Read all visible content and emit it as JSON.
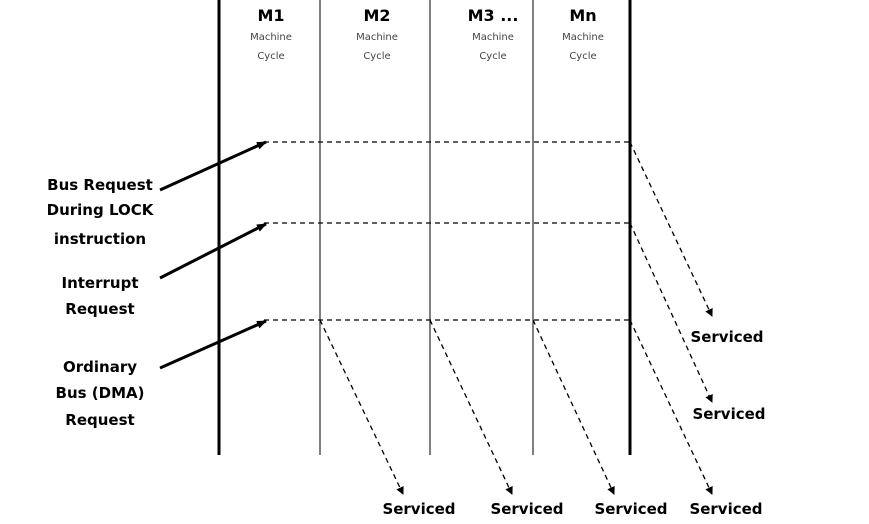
{
  "columns": [
    {
      "title": "M1",
      "line1": "Machine",
      "line2": "Cycle"
    },
    {
      "title": "M2",
      "line1": "Machine",
      "line2": "Cycle"
    },
    {
      "title": "M3 ...",
      "line1": "Machine",
      "line2": "Cycle"
    },
    {
      "title": "Mn",
      "line1": "Machine",
      "line2": "Cycle"
    }
  ],
  "requests": [
    {
      "lines": [
        "Bus Request",
        "During LOCK",
        "instruction"
      ]
    },
    {
      "lines": [
        "Interrupt",
        "Request"
      ]
    },
    {
      "lines": [
        "Ordinary",
        "Bus (DMA)",
        "Request"
      ]
    }
  ],
  "serviced_label": "Serviced",
  "colors": {
    "line": "#000000",
    "text": "#000000",
    "subtext": "#444444",
    "background": "#ffffff"
  }
}
